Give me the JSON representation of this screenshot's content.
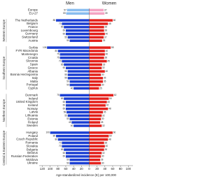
{
  "chart_data": {
    "type": "butterfly-bar",
    "x_label": "Age-standardized incidence (E) per 100,000",
    "series": [
      {
        "name": "Men",
        "color": "#1b3fd3"
      },
      {
        "name": "Women",
        "color": "#e4211c"
      }
    ],
    "summary": {
      "categories": [
        "Europe",
        "EU-27"
      ],
      "colors": [
        "#88bcef",
        "#f4a3c3"
      ],
      "values": [
        [
          57,
          37
        ],
        [
          59,
          39
        ]
      ]
    },
    "groups": [
      {
        "name": "Western Europe",
        "categories": [
          "The Netherlands",
          "Belgium",
          "France",
          "Luxembourg",
          "Germany",
          "Switzerland",
          "Austria"
        ],
        "values": [
          [
            85,
            60
          ],
          [
            70,
            48
          ],
          [
            65,
            38
          ],
          [
            60,
            38
          ],
          [
            60,
            40
          ],
          [
            55,
            37
          ],
          [
            50,
            33
          ]
        ]
      },
      {
        "name": "Southern Europe",
        "categories": [
          "Serbia",
          "FYR Macedonia",
          "Montenegro",
          "Croatia",
          "Slovenia",
          "Spain",
          "Greece",
          "Albania",
          "Bosnia Herzegovina",
          "Italy",
          "Malta",
          "Portugal",
          "Cyprus"
        ],
        "values": [
          [
            108,
            55
          ],
          [
            80,
            40
          ],
          [
            75,
            40
          ],
          [
            75,
            38
          ],
          [
            70,
            45
          ],
          [
            65,
            33
          ],
          [
            60,
            32
          ],
          [
            55,
            40
          ],
          [
            55,
            30
          ],
          [
            55,
            35
          ],
          [
            50,
            35
          ],
          [
            50,
            30
          ],
          [
            40,
            25
          ]
        ]
      },
      {
        "name": "Northern Europe",
        "categories": [
          "Denmark",
          "Ireland",
          "United Kingdom",
          "Iceland",
          "Norway",
          "Latvia",
          "Lithuania",
          "Estonia",
          "Finland",
          "Sweden"
        ],
        "values": [
          [
            75,
            62
          ],
          [
            65,
            50
          ],
          [
            60,
            45
          ],
          [
            60,
            42
          ],
          [
            60,
            48
          ],
          [
            58,
            35
          ],
          [
            55,
            32
          ],
          [
            50,
            30
          ],
          [
            45,
            28
          ],
          [
            40,
            32
          ]
        ]
      },
      {
        "name": "Central & Eastern Europe",
        "categories": [
          "Hungary",
          "Poland",
          "Czech Republic",
          "Romania",
          "Slovakia",
          "Bulgaria",
          "Belarus",
          "Russian Federation",
          "Moldova",
          "Ukraine"
        ],
        "values": [
          [
            100,
            60
          ],
          [
            85,
            50
          ],
          [
            80,
            48
          ],
          [
            70,
            38
          ],
          [
            70,
            40
          ],
          [
            65,
            38
          ],
          [
            60,
            32
          ],
          [
            60,
            30
          ],
          [
            50,
            28
          ],
          [
            50,
            30
          ]
        ]
      }
    ],
    "xlim": [
      -128,
      112
    ],
    "xticks": [
      {
        "value": -120,
        "label": "120"
      },
      {
        "value": -100,
        "label": "100"
      },
      {
        "value": -80,
        "label": "80"
      },
      {
        "value": -60,
        "label": "60"
      },
      {
        "value": -40,
        "label": "40"
      },
      {
        "value": -20,
        "label": "20"
      },
      0,
      20,
      40,
      60,
      80,
      100
    ]
  }
}
